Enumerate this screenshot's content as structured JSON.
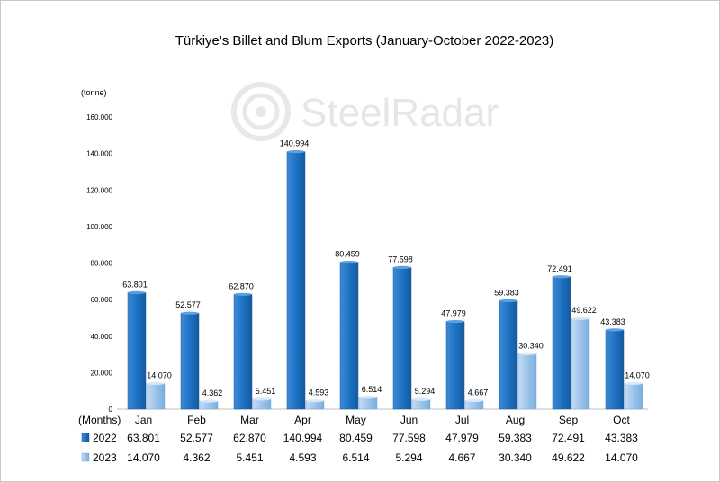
{
  "watermark": {
    "brand_a": "Steel",
    "brand_b": "Radar"
  },
  "chart_data": {
    "type": "bar",
    "title": "Türkiye's Billet and Blum Exports (January-October 2022-2023)",
    "ylabel": "(tonne)",
    "xlabel": "(Months)",
    "categories": [
      "Jan",
      "Feb",
      "Mar",
      "Apr",
      "May",
      "Jun",
      "Jul",
      "Aug",
      "Sep",
      "Oct"
    ],
    "ylim": [
      0,
      160000
    ],
    "yticks": [
      0,
      20000,
      40000,
      60000,
      80000,
      100000,
      120000,
      140000,
      160000
    ],
    "ytick_labels": [
      "0",
      "20.000",
      "40.000",
      "60.000",
      "80.000",
      "100.000",
      "120.000",
      "140.000",
      "160.000"
    ],
    "grid": false,
    "legend": "bottom-table",
    "series": [
      {
        "name": "2022",
        "color": "#1f72c4",
        "values": [
          63801,
          52577,
          62870,
          140994,
          80459,
          77598,
          47979,
          59383,
          72491,
          43383
        ],
        "labels": [
          "63.801",
          "52.577",
          "62.870",
          "140.994",
          "80.459",
          "77.598",
          "47.979",
          "59.383",
          "72.491",
          "43.383"
        ]
      },
      {
        "name": "2023",
        "color": "#9ec4ea",
        "values": [
          14070,
          4362,
          5451,
          4593,
          6514,
          5294,
          4667,
          30340,
          49622,
          14070
        ],
        "labels": [
          "14.070",
          "4.362",
          "5.451",
          "4.593",
          "6.514",
          "5.294",
          "4.667",
          "30.340",
          "49.622",
          "14.070"
        ]
      }
    ]
  }
}
